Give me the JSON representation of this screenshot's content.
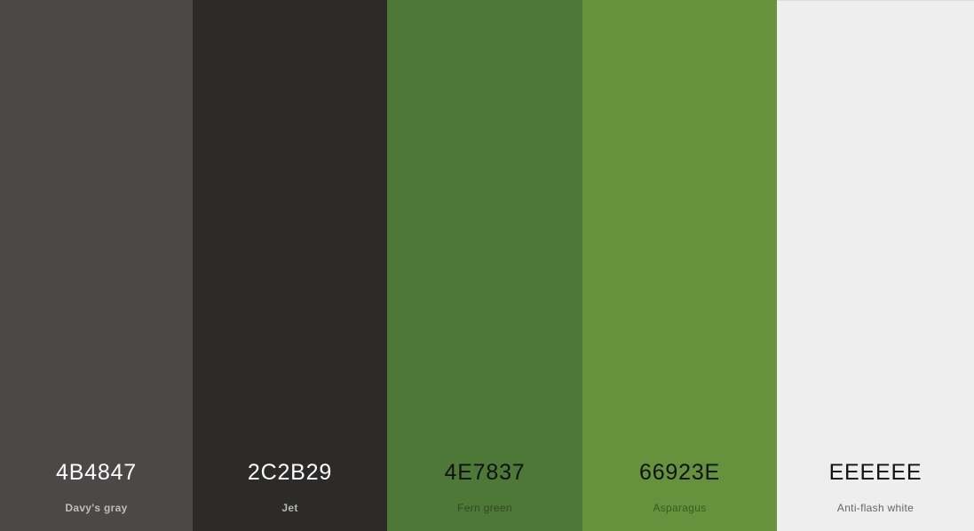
{
  "swatches": [
    {
      "hex": "4B4847",
      "name": "Davy's gray",
      "color": "#4B4847",
      "text_color": "#ffffff",
      "name_color": "#bdbdbd"
    },
    {
      "hex": "2C2B29",
      "name": "Jet",
      "color": "#2C2B29",
      "text_color": "#ffffff",
      "name_color": "#b5b5b5"
    },
    {
      "hex": "4E7837",
      "name": "Fern green",
      "color": "#4E7837",
      "text_color": "#111111",
      "name_color": "#2f4a22"
    },
    {
      "hex": "66923E",
      "name": "Asparagus",
      "color": "#66923E",
      "text_color": "#111111",
      "name_color": "#3a5a22"
    },
    {
      "hex": "EEEEEE",
      "name": "Anti-flash white",
      "color": "#EEEEEE",
      "text_color": "#111111",
      "name_color": "#666666"
    }
  ]
}
